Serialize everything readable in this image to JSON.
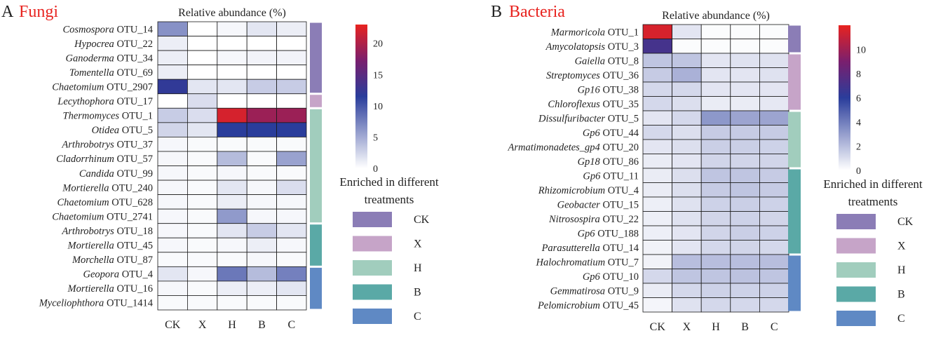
{
  "chart_data": [
    {
      "type": "heatmap",
      "panel_letter": "A",
      "panel_title": "Fungi",
      "title": "Relative abundance (%)",
      "columns": [
        "CK",
        "X",
        "H",
        "B",
        "C"
      ],
      "rows": [
        {
          "genus": "Cosmospora",
          "otu": "OTU_14",
          "values": [
            6.5,
            0,
            0.5,
            1.5,
            1.0
          ]
        },
        {
          "genus": "Hypocrea",
          "otu": "OTU_22",
          "values": [
            1.0,
            0,
            0,
            0,
            0
          ]
        },
        {
          "genus": "Ganoderma",
          "otu": "OTU_34",
          "values": [
            1.0,
            0,
            0.5,
            0.7,
            0.7
          ]
        },
        {
          "genus": "Tomentella",
          "otu": "OTU_69",
          "values": [
            1.0,
            0,
            0,
            0,
            0
          ]
        },
        {
          "genus": "Chaetomium",
          "otu": "OTU_2907",
          "values": [
            12.0,
            1.5,
            1.5,
            3.0,
            3.0
          ]
        },
        {
          "genus": "Lecythophora",
          "otu": "OTU_17",
          "values": [
            0,
            2.0,
            0,
            0,
            0
          ]
        },
        {
          "genus": "Thermomyces",
          "otu": "OTU_1",
          "values": [
            3.0,
            2.0,
            22.0,
            19.0,
            19.0
          ]
        },
        {
          "genus": "Otidea",
          "otu": "OTU_5",
          "values": [
            2.5,
            1.5,
            11.5,
            11.5,
            11.5
          ]
        },
        {
          "genus": "Arthrobotrys",
          "otu": "OTU_37",
          "values": [
            0.5,
            0.3,
            0.3,
            0.3,
            0.3
          ]
        },
        {
          "genus": "Cladorrhinum",
          "otu": "OTU_57",
          "values": [
            0.5,
            0.3,
            4.0,
            0.3,
            5.5
          ]
        },
        {
          "genus": "Candida",
          "otu": "OTU_99",
          "values": [
            0.5,
            0.3,
            0.5,
            0.3,
            0.3
          ]
        },
        {
          "genus": "Mortierella",
          "otu": "OTU_240",
          "values": [
            0.5,
            0.3,
            1.5,
            0.5,
            2.0
          ]
        },
        {
          "genus": "Chaetomium",
          "otu": "OTU_628",
          "values": [
            0.5,
            0.3,
            1.0,
            0.5,
            0.5
          ]
        },
        {
          "genus": "Chaetomium",
          "otu": "OTU_2741",
          "values": [
            0.5,
            0.3,
            6.0,
            0.5,
            0.5
          ]
        },
        {
          "genus": "Arthrobotrys",
          "otu": "OTU_18",
          "values": [
            0.5,
            0.3,
            1.5,
            3.0,
            1.5
          ]
        },
        {
          "genus": "Mortierella",
          "otu": "OTU_45",
          "values": [
            0.5,
            0.3,
            0.5,
            1.0,
            0.5
          ]
        },
        {
          "genus": "Morchella",
          "otu": "OTU_87",
          "values": [
            0.3,
            0.3,
            0.3,
            0.5,
            0.3
          ]
        },
        {
          "genus": "Geopora",
          "otu": "OTU_4",
          "values": [
            1.5,
            0.5,
            8.0,
            4.0,
            7.5
          ]
        },
        {
          "genus": "Mortierella",
          "otu": "OTU_16",
          "values": [
            0.5,
            0.3,
            1.0,
            1.0,
            1.5
          ]
        },
        {
          "genus": "Myceliophthora",
          "otu": "OTU_1414",
          "values": [
            0.3,
            0.3,
            0.3,
            0.3,
            0.3
          ]
        }
      ],
      "enrichment_groups": [
        {
          "group": "CK",
          "rows": 5
        },
        {
          "group": "X",
          "rows": 1
        },
        {
          "group": "H",
          "rows": 8
        },
        {
          "group": "B",
          "rows": 3
        },
        {
          "group": "C",
          "rows": 3
        }
      ],
      "colorbar": {
        "min": 0,
        "max": 23,
        "ticks": [
          0,
          5,
          10,
          15,
          20
        ]
      }
    },
    {
      "type": "heatmap",
      "panel_letter": "B",
      "panel_title": "Bacteria",
      "title": "Relative abundance (%)",
      "columns": [
        "CK",
        "X",
        "H",
        "B",
        "C"
      ],
      "rows": [
        {
          "genus": "Marmoricola",
          "otu": "OTU_1",
          "values": [
            11.5,
            0.8,
            0.1,
            0.1,
            0.1
          ]
        },
        {
          "genus": "Amycolatopsis",
          "otu": "OTU_3",
          "values": [
            7.0,
            0.1,
            0.1,
            0.1,
            0.1
          ]
        },
        {
          "genus": "Gaiella",
          "otu": "OTU_8",
          "values": [
            1.8,
            1.8,
            0.8,
            0.9,
            0.9
          ]
        },
        {
          "genus": "Streptomyces",
          "otu": "OTU_36",
          "values": [
            1.6,
            2.4,
            0.8,
            0.8,
            0.9
          ]
        },
        {
          "genus": "Gp16",
          "otu": "OTU_38",
          "values": [
            1.2,
            1.2,
            0.8,
            0.8,
            0.8
          ]
        },
        {
          "genus": "Chloroflexus",
          "otu": "OTU_35",
          "values": [
            1.2,
            1.0,
            0.6,
            0.6,
            0.7
          ]
        },
        {
          "genus": "Dissulfuribacter",
          "otu": "OTU_5",
          "values": [
            0.8,
            1.2,
            3.2,
            2.8,
            2.8
          ]
        },
        {
          "genus": "Gp6",
          "otu": "OTU_44",
          "values": [
            1.2,
            1.0,
            1.6,
            1.6,
            1.6
          ]
        },
        {
          "genus": "Armatimonadetes_gp4",
          "otu": "OTU_20",
          "values": [
            0.8,
            1.0,
            1.5,
            1.5,
            1.4
          ]
        },
        {
          "genus": "Gp18",
          "otu": "OTU_86",
          "values": [
            0.6,
            0.8,
            1.3,
            1.3,
            1.3
          ]
        },
        {
          "genus": "Gp6",
          "otu": "OTU_11",
          "values": [
            0.6,
            1.0,
            1.8,
            1.8,
            1.6
          ]
        },
        {
          "genus": "Rhizomicrobium",
          "otu": "OTU_4",
          "values": [
            0.6,
            1.0,
            1.6,
            1.8,
            1.6
          ]
        },
        {
          "genus": "Geobacter",
          "otu": "OTU_15",
          "values": [
            0.5,
            0.9,
            1.4,
            1.5,
            1.4
          ]
        },
        {
          "genus": "Nitrosospira",
          "otu": "OTU_22",
          "values": [
            0.5,
            0.9,
            1.3,
            1.4,
            1.3
          ]
        },
        {
          "genus": "Gp6",
          "otu": "OTU_188",
          "values": [
            0.5,
            0.8,
            1.3,
            1.5,
            1.4
          ]
        },
        {
          "genus": "Parasutterella",
          "otu": "OTU_14",
          "values": [
            0.4,
            0.8,
            1.2,
            1.3,
            1.2
          ]
        },
        {
          "genus": "Halochromatium",
          "otu": "OTU_7",
          "values": [
            0.4,
            2.0,
            2.0,
            2.0,
            2.0
          ]
        },
        {
          "genus": "Gp6",
          "otu": "OTU_10",
          "values": [
            1.2,
            1.8,
            1.8,
            1.9,
            1.8
          ]
        },
        {
          "genus": "Gemmatirosa",
          "otu": "OTU_9",
          "values": [
            0.6,
            1.2,
            1.4,
            1.4,
            1.4
          ]
        },
        {
          "genus": "Pelomicrobium",
          "otu": "OTU_45",
          "values": [
            0.3,
            0.9,
            1.2,
            1.2,
            1.2
          ]
        }
      ],
      "enrichment_groups": [
        {
          "group": "CK",
          "rows": 2
        },
        {
          "group": "X",
          "rows": 4
        },
        {
          "group": "H",
          "rows": 4
        },
        {
          "group": "B",
          "rows": 6
        },
        {
          "group": "C",
          "rows": 4
        }
      ],
      "colorbar": {
        "min": 0,
        "max": 12,
        "ticks": [
          0,
          2,
          4,
          6,
          8,
          10
        ]
      }
    }
  ],
  "legend": {
    "title_line1": "Enriched in different",
    "title_line2": "treatments",
    "items": [
      {
        "label": "CK",
        "color": "#8b7db6"
      },
      {
        "label": "X",
        "color": "#c6a4c8"
      },
      {
        "label": "H",
        "color": "#a1cdbd"
      },
      {
        "label": "B",
        "color": "#5aa9a6"
      },
      {
        "label": "C",
        "color": "#5f89c4"
      }
    ]
  },
  "colors": {
    "panel_title": "#e8231f",
    "scale_low": "#ffffff",
    "scale_mid": "#2a3d9b",
    "scale_mid2": "#7a1f6e",
    "scale_high": "#e8231f"
  }
}
